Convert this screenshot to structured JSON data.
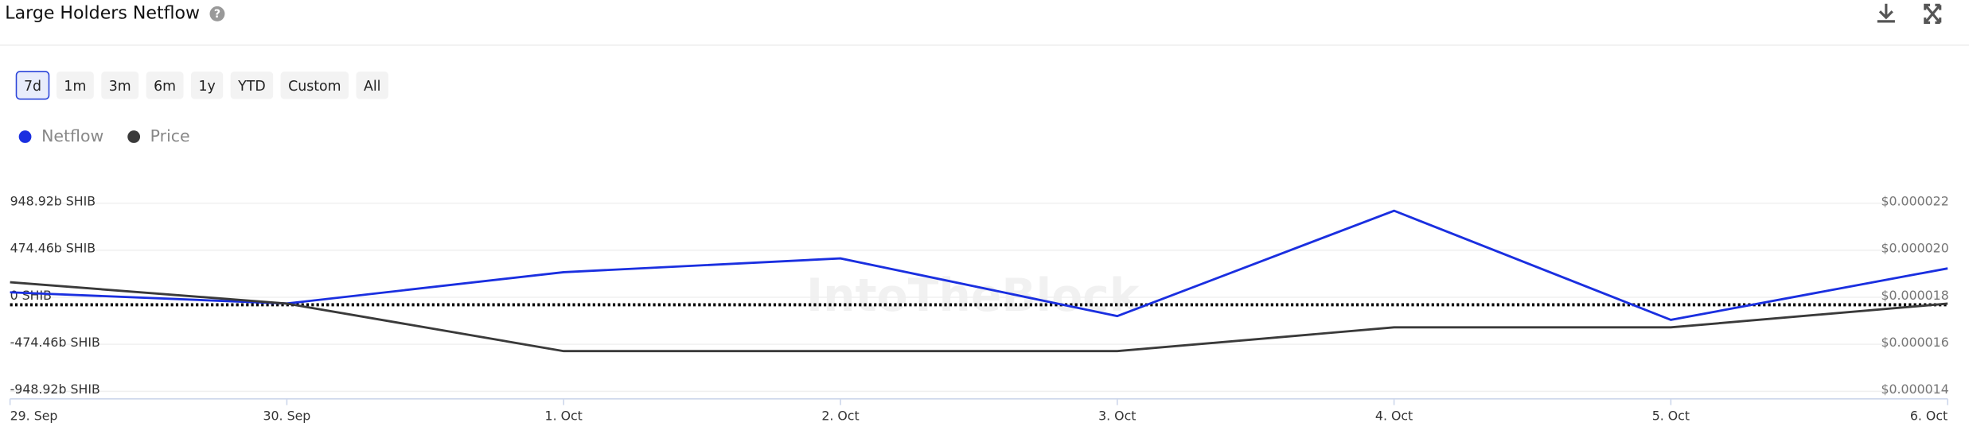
{
  "header": {
    "title": "Large Holders Netflow"
  },
  "ranges": [
    "7d",
    "1m",
    "3m",
    "6m",
    "1y",
    "YTD",
    "Custom",
    "All"
  ],
  "watermark": "IntoTheBlock",
  "chart_data": {
    "type": "line",
    "categories": [
      "29. Sep",
      "30. Sep",
      "1. Oct",
      "2. Oct",
      "3. Oct",
      "4. Oct",
      "5. Oct",
      "6. Oct"
    ],
    "series": [
      {
        "name": "Netflow",
        "color": "#1a2fe0",
        "values": [
          50,
          -63,
          253,
          392,
          -190,
          873,
          -228,
          291
        ]
      },
      {
        "name": "Price",
        "color": "#3a3a3a",
        "axis": "y2",
        "values": [
          1.864e-05,
          1.773e-05,
          1.571e-05,
          1.571e-05,
          1.571e-05,
          1.672e-05,
          1.672e-05,
          1.773e-05
        ]
      }
    ],
    "ylim": [
      -948.92,
      948.92
    ],
    "yticks": [
      {
        "value": 948.92,
        "label": "948.92b SHIB"
      },
      {
        "value": 474.46,
        "label": "474.46b SHIB"
      },
      {
        "value": 0,
        "label": "0 SHIB"
      },
      {
        "value": -474.46,
        "label": "-474.46b SHIB"
      },
      {
        "value": -948.92,
        "label": "-948.92b SHIB"
      }
    ],
    "y2lim": [
      1.4e-05,
      2.2e-05
    ],
    "y2ticks": [
      {
        "value": 2.2e-05,
        "label": "$0.000022"
      },
      {
        "value": 2e-05,
        "label": "$0.000020"
      },
      {
        "value": 1.8e-05,
        "label": "$0.000018"
      },
      {
        "value": 1.6e-05,
        "label": "$0.000016"
      },
      {
        "value": 1.4e-05,
        "label": "$0.000014"
      }
    ],
    "grid": true
  }
}
